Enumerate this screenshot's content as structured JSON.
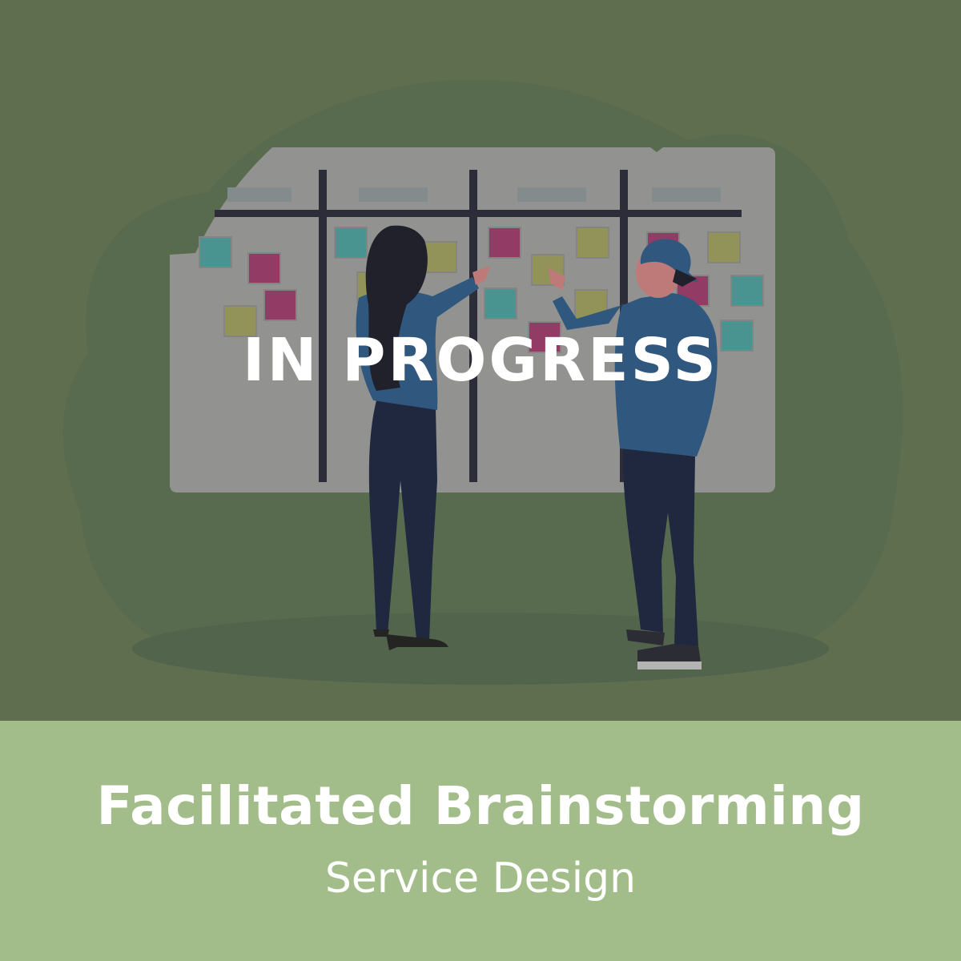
{
  "card": {
    "status": "IN PROGRESS",
    "title": "Facilitated Brainstorming",
    "subtitle": "Service Design"
  },
  "colors": {
    "illustration_background": "#627151",
    "caption_background": "#a3bd8a",
    "text": "#ffffff",
    "sticky_teal": "#4a9a9a",
    "sticky_magenta": "#9a3a6a",
    "sticky_yellow": "#9a9a5c"
  },
  "illustration": {
    "scene": "two-people-at-kanban-board-illustration"
  }
}
